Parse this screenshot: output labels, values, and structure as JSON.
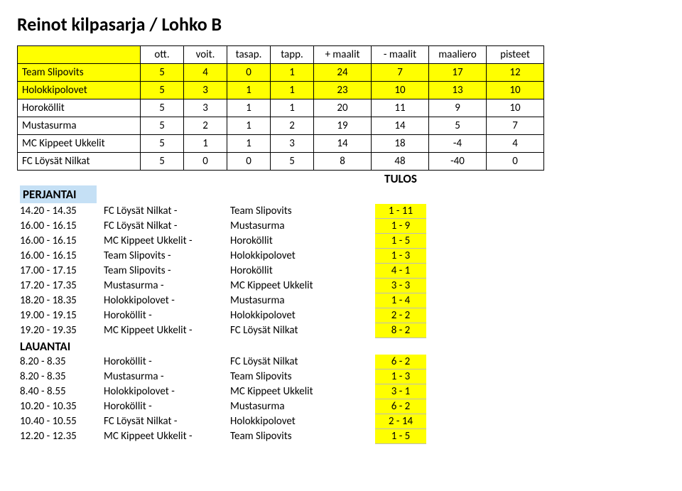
{
  "title": "Reinot kilpasarja / Lohko B",
  "standings": {
    "headers": [
      "",
      "ott.",
      "voit.",
      "tasap.",
      "tapp.",
      "+ maalit",
      "- maalit",
      "maaliero",
      "pisteet"
    ],
    "rows": [
      {
        "team": "Team Slipovits",
        "vals": [
          "5",
          "4",
          "0",
          "1",
          "24",
          "7",
          "17",
          "12"
        ],
        "hl": true
      },
      {
        "team": "Holokkipolovet",
        "vals": [
          "5",
          "3",
          "1",
          "1",
          "23",
          "10",
          "13",
          "10"
        ],
        "hl": true
      },
      {
        "team": "Horoköllit",
        "vals": [
          "5",
          "3",
          "1",
          "1",
          "20",
          "11",
          "9",
          "10"
        ],
        "hl": false
      },
      {
        "team": "Mustasurma",
        "vals": [
          "5",
          "2",
          "1",
          "2",
          "19",
          "14",
          "5",
          "7"
        ],
        "hl": false
      },
      {
        "team": "MC Kippeet Ukkelit",
        "vals": [
          "5",
          "1",
          "1",
          "3",
          "14",
          "18",
          "-4",
          "4"
        ],
        "hl": false
      },
      {
        "team": "FC Löysät Nilkat",
        "vals": [
          "5",
          "0",
          "0",
          "5",
          "8",
          "48",
          "-40",
          "0"
        ],
        "hl": false
      }
    ]
  },
  "days": {
    "perjantai": "PERJANTAI",
    "lauantai": "LAUANTAI",
    "tulos": "TULOS"
  },
  "perjantai": [
    {
      "time": "14.20 - 14.35",
      "a": "FC Löysät Nilkat -",
      "b": "Team Slipovits",
      "score": "1 - 11"
    },
    {
      "time": "16.00 - 16.15",
      "a": "FC Löysät Nilkat -",
      "b": "Mustasurma",
      "score": "1 - 9"
    },
    {
      "time": "16.00 - 16.15",
      "a": "MC Kippeet Ukkelit -",
      "b": "Horoköllit",
      "score": "1 - 5"
    },
    {
      "time": "16.00 - 16.15",
      "a": "Team Slipovits -",
      "b": "Holokkipolovet",
      "score": "1 - 3"
    },
    {
      "time": "17.00 - 17.15",
      "a": "Team Slipovits -",
      "b": "Horoköllit",
      "score": "4 - 1"
    },
    {
      "time": "17.20 - 17.35",
      "a": "Mustasurma -",
      "b": "MC Kippeet Ukkelit",
      "score": "3 - 3"
    },
    {
      "time": "18.20 - 18.35",
      "a": "Holokkipolovet -",
      "b": "Mustasurma",
      "score": "1 - 4"
    },
    {
      "time": "19.00 - 19.15",
      "a": "Horoköllit -",
      "b": "Holokkipolovet",
      "score": "2 - 2"
    },
    {
      "time": "19.20 - 19.35",
      "a": "MC Kippeet Ukkelit -",
      "b": "FC Löysät Nilkat",
      "score": "8 - 2"
    }
  ],
  "lauantai": [
    {
      "time": "8.20 - 8.35",
      "a": "Horoköllit -",
      "b": "FC Löysät Nilkat",
      "score": "6 - 2"
    },
    {
      "time": "8.20 - 8.35",
      "a": "Mustasurma -",
      "b": "Team Slipovits",
      "score": "1 - 3"
    },
    {
      "time": "8.40 - 8.55",
      "a": "Holokkipolovet -",
      "b": "MC Kippeet Ukkelit",
      "score": "3 - 1"
    },
    {
      "time": "10.20 - 10.35",
      "a": "Horoköllit -",
      "b": "Mustasurma",
      "score": "6 - 2"
    },
    {
      "time": "10.40 - 10.55",
      "a": "FC Löysät Nilkat -",
      "b": "Holokkipolovet",
      "score": "2 - 14"
    },
    {
      "time": "12.20 - 12.35",
      "a": "MC Kippeet Ukkelit -",
      "b": "Team Slipovits",
      "score": "1 - 5"
    }
  ]
}
